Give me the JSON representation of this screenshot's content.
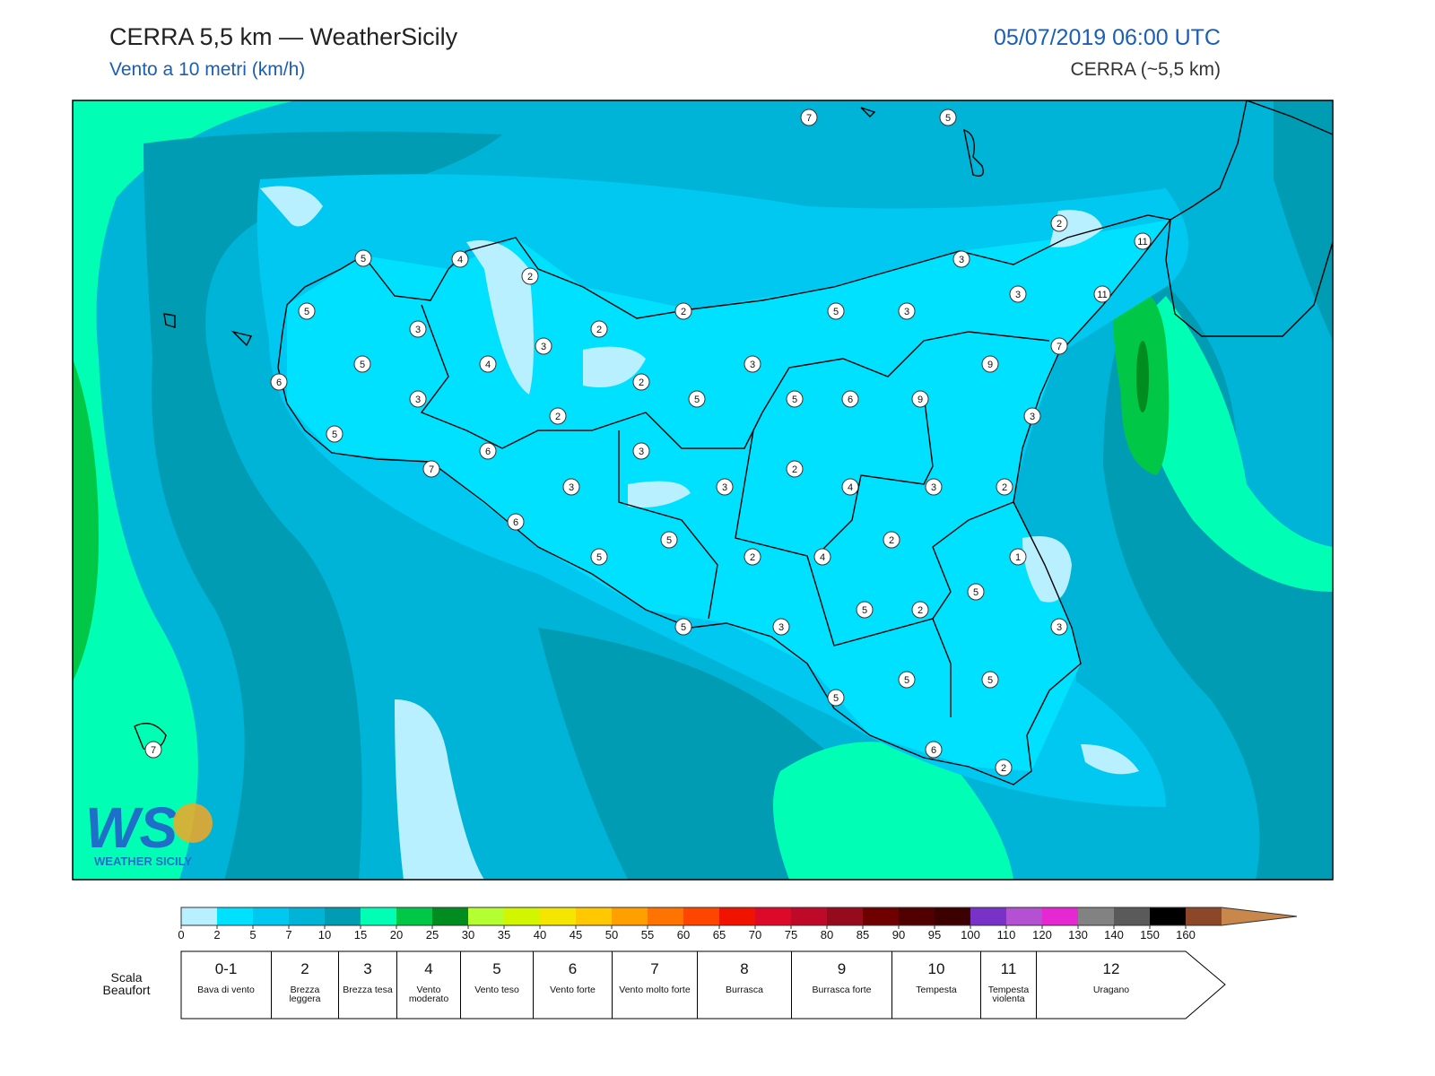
{
  "header": {
    "title": "CERRA 5,5 km — WeatherSicily",
    "subtitle": "Vento a 10 metri (km/h)",
    "datetime": "05/07/2019 06:00 UTC",
    "model": "CERRA (~5,5 km)"
  },
  "map": {
    "stations": [
      7,
      5,
      2,
      11,
      11,
      5,
      4,
      2,
      5,
      3,
      2,
      2,
      5,
      3,
      3,
      3,
      3,
      5,
      4,
      6,
      2,
      3,
      7,
      9,
      3,
      5,
      5,
      6,
      9,
      2,
      3,
      5,
      6,
      3,
      7,
      2,
      3,
      3,
      4,
      3,
      2,
      6,
      5,
      2,
      5,
      2,
      4,
      1,
      5,
      5,
      2,
      5,
      3,
      3,
      5,
      5,
      5,
      7,
      6,
      2
    ]
  },
  "logo": {
    "mark": "WS",
    "name": "WEATHER SICILY"
  },
  "colorbar": {
    "ticks": [
      0,
      2,
      5,
      7,
      10,
      15,
      20,
      25,
      30,
      35,
      40,
      45,
      50,
      55,
      60,
      65,
      70,
      75,
      80,
      85,
      90,
      95,
      100,
      110,
      120,
      130,
      140,
      150,
      160
    ],
    "colors": [
      "#b8f0ff",
      "#00e0ff",
      "#00c8f0",
      "#00b4d8",
      "#009cb4",
      "#00ffb4",
      "#00c846",
      "#008c1e",
      "#b4ff32",
      "#d2f500",
      "#f5e600",
      "#ffc800",
      "#ffa000",
      "#ff7300",
      "#ff4600",
      "#f01400",
      "#dc0a28",
      "#be0a28",
      "#960a1e",
      "#6e0000",
      "#500000",
      "#3c0000",
      "#7832c8",
      "#b450d2",
      "#e628d2",
      "#828282",
      "#5a5a5a",
      "#000000"
    ],
    "arrow_colors": [
      "#8c4628",
      "#c8874b"
    ]
  },
  "beaufort": {
    "label": "Scala Beaufort",
    "classes": [
      {
        "force": "0-1",
        "description": "Bava di vento"
      },
      {
        "force": "2",
        "description": "Brezza leggera"
      },
      {
        "force": "3",
        "description": "Brezza tesa"
      },
      {
        "force": "4",
        "description": "Vento moderato"
      },
      {
        "force": "5",
        "description": "Vento teso"
      },
      {
        "force": "6",
        "description": "Vento forte"
      },
      {
        "force": "7",
        "description": "Vento molto forte"
      },
      {
        "force": "8",
        "description": "Burrasca"
      },
      {
        "force": "9",
        "description": "Burrasca forte"
      },
      {
        "force": "10",
        "description": "Tempesta"
      },
      {
        "force": "11",
        "description": "Tempesta violenta"
      },
      {
        "force": "12",
        "description": "Uragano"
      }
    ]
  }
}
